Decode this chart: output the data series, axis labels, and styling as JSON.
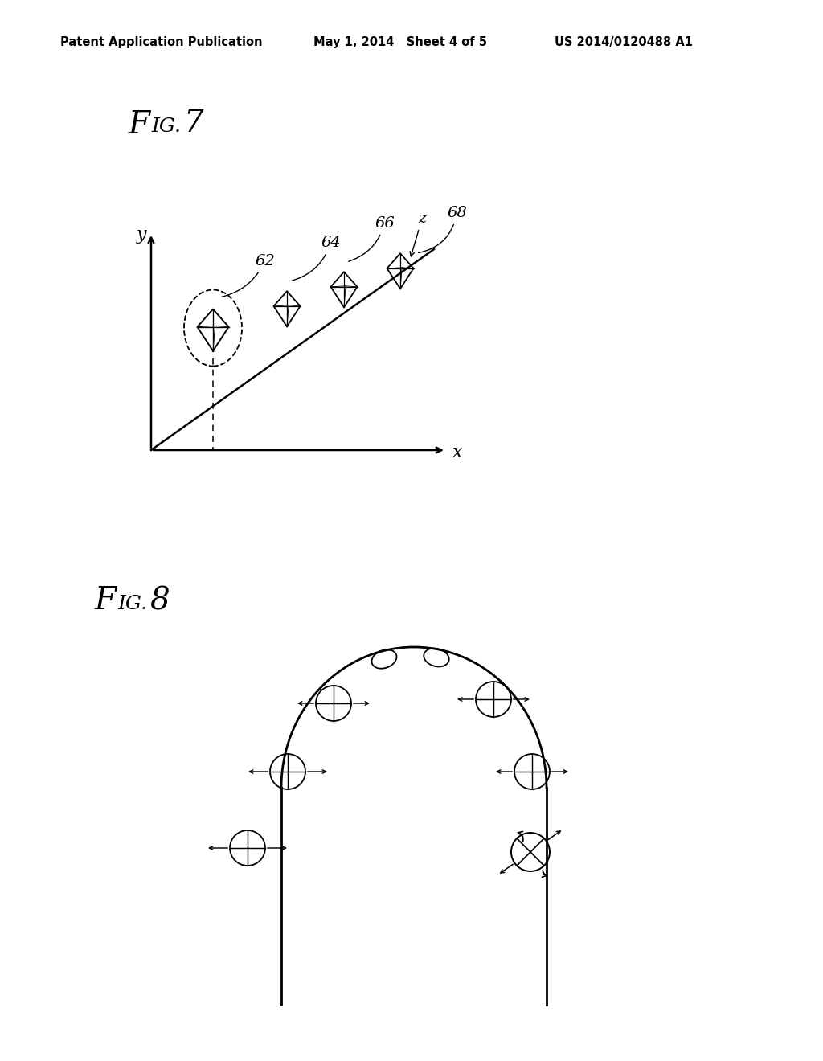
{
  "bg_color": "#ffffff",
  "header_left": "Patent Application Publication",
  "header_mid": "May 1, 2014   Sheet 4 of 5",
  "header_right": "US 2014/0120488 A1",
  "fig7_label": "FIG. 7",
  "fig8_label": "FIG. 8"
}
